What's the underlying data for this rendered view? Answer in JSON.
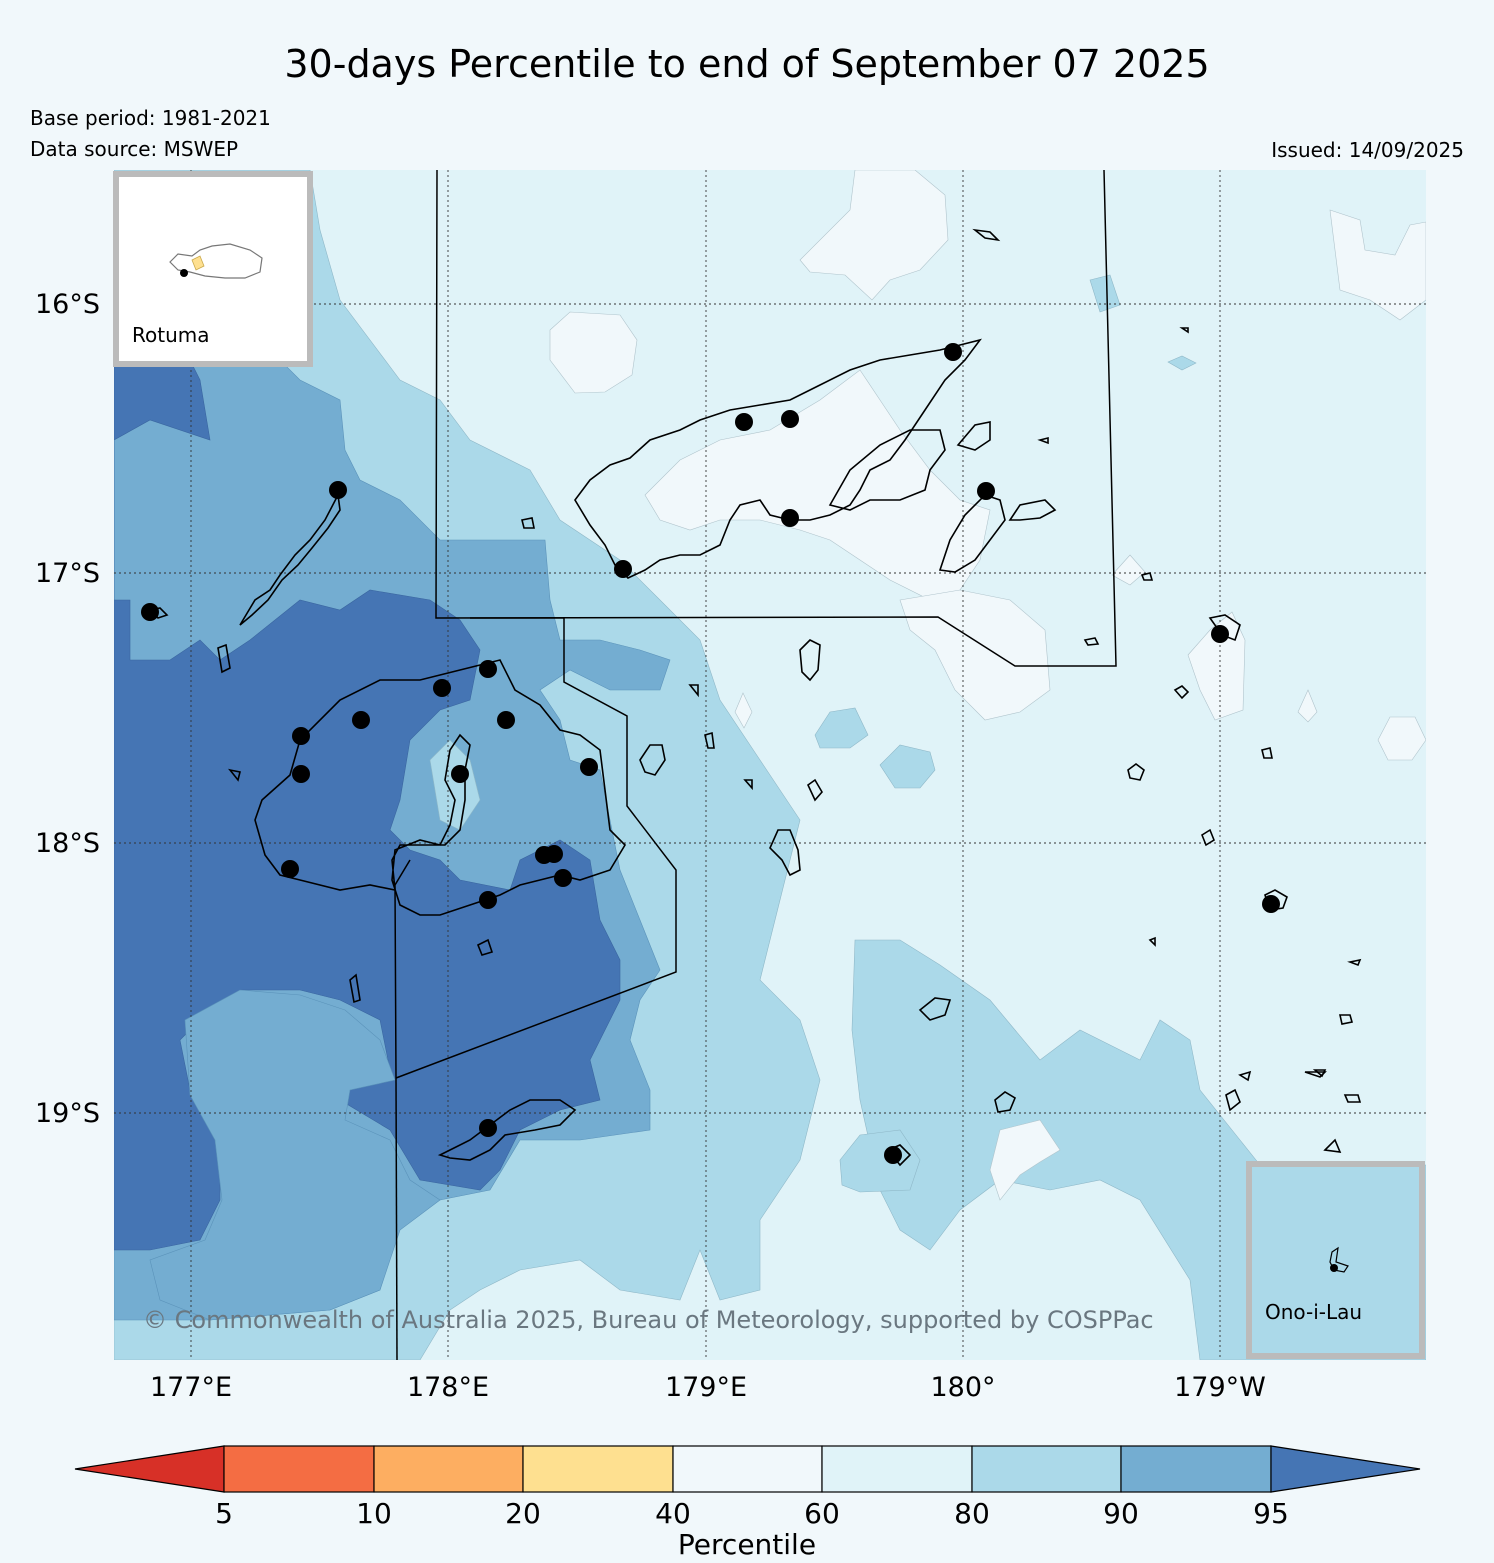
{
  "title": "30-days Percentile to end of September 07 2025",
  "base_period": "Base period: 1981-2021",
  "data_source": "Data source: MSWEP",
  "issued": "Issued: 14/09/2025",
  "copyright": "© Commonwealth of Australia 2025, Bureau of Meteorology, supported by COSPPac",
  "map": {
    "lat_labels": [
      "16°S",
      "17°S",
      "18°S",
      "19°S"
    ],
    "lon_labels": [
      "177°E",
      "178°E",
      "179°E",
      "180°",
      "179°W"
    ],
    "insets": [
      {
        "name": "Rotuma"
      },
      {
        "name": "Ono-i-Lau"
      }
    ]
  },
  "colorbar": {
    "label": "Percentile",
    "ticks": [
      "5",
      "10",
      "20",
      "40",
      "60",
      "80",
      "90",
      "95"
    ],
    "colors": {
      "below_5": "#d73027",
      "5_10": "#f46d43",
      "10_20": "#fdae61",
      "20_40": "#fee090",
      "40_60": "#f1f8fb",
      "60_80": "#e0f3f8",
      "80_90": "#abd9e9",
      "90_95": "#74add1",
      "above_95": "#4575b4"
    }
  }
}
